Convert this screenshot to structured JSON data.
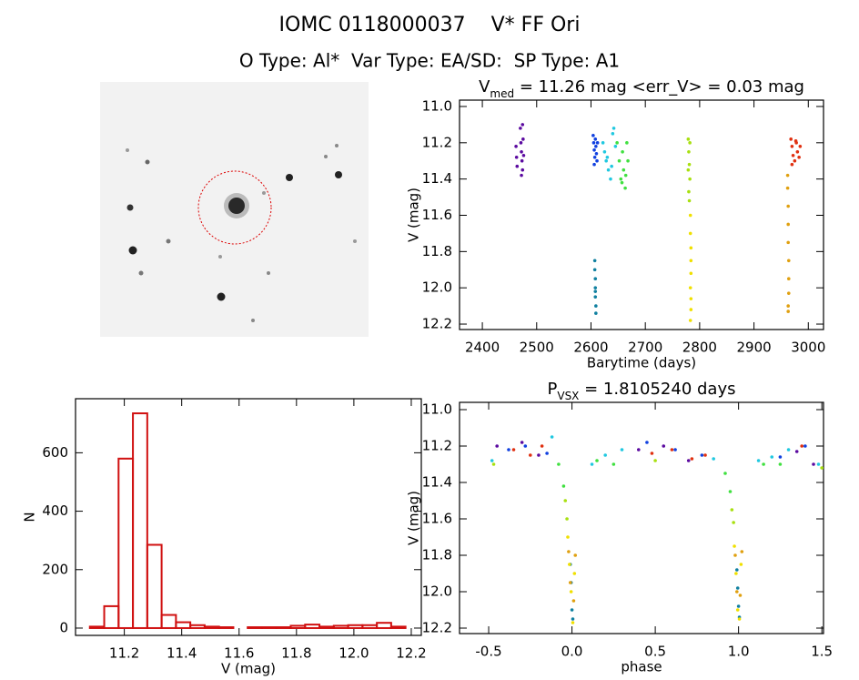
{
  "header": {
    "title": "IOMC 0118000037    V* FF Ori",
    "subtitle": "O Type: Al*  Var Type: EA/SD:  SP Type: A1"
  },
  "chart_data": [
    {
      "type": "scatter",
      "title": [
        "V",
        "med",
        " = 11.26 mag <err_V> = 0.03 mag"
      ],
      "title_subscript": 1,
      "xlabel": "Barytime (days)",
      "ylabel": "V (mag)",
      "xlim": [
        2358,
        3028
      ],
      "xticks": [
        2400,
        2500,
        2600,
        2700,
        2800,
        2900,
        3000
      ],
      "ylim": [
        10.965,
        12.23
      ],
      "y_inverted": true,
      "yticks": [
        {
          "value": 11,
          "label": "11.0"
        },
        11.2,
        11.4,
        11.6,
        11.8,
        {
          "value": 12,
          "label": "12.0"
        },
        12.2
      ],
      "series": [
        {
          "color": "#5b0aa0",
          "x": [
            2462,
            2463,
            2464,
            2470,
            2471,
            2472,
            2473,
            2474,
            2475,
            2476,
            2472,
            2474
          ],
          "values": [
            11.22,
            11.28,
            11.33,
            11.12,
            11.2,
            11.25,
            11.3,
            11.35,
            11.18,
            11.27,
            11.38,
            11.1
          ]
        },
        {
          "color": "#1040e0",
          "x": [
            2604,
            2605,
            2606,
            2607,
            2608,
            2609,
            2610,
            2611,
            2612,
            2606
          ],
          "values": [
            11.16,
            11.2,
            11.24,
            11.28,
            11.18,
            11.22,
            11.26,
            11.3,
            11.2,
            11.32
          ]
        },
        {
          "color": "#1080a0",
          "x": [
            2607,
            2607,
            2608,
            2608,
            2608,
            2609,
            2609,
            2608
          ],
          "values": [
            11.85,
            11.9,
            11.95,
            12.0,
            12.05,
            12.1,
            12.14,
            12.02
          ]
        },
        {
          "color": "#20c8e0",
          "x": [
            2622,
            2625,
            2628,
            2632,
            2636,
            2640,
            2642,
            2645,
            2630,
            2638
          ],
          "values": [
            11.2,
            11.25,
            11.3,
            11.35,
            11.4,
            11.15,
            11.12,
            11.22,
            11.28,
            11.33
          ]
        },
        {
          "color": "#40e040",
          "x": [
            2648,
            2652,
            2655,
            2658,
            2660,
            2663,
            2666,
            2668,
            2657,
            2664
          ],
          "values": [
            11.2,
            11.3,
            11.4,
            11.25,
            11.35,
            11.45,
            11.2,
            11.3,
            11.42,
            11.38
          ]
        },
        {
          "color": "#a8e010",
          "x": [
            2779,
            2780,
            2781,
            2782,
            2780,
            2781,
            2779,
            2782
          ],
          "values": [
            11.18,
            11.25,
            11.32,
            11.4,
            11.47,
            11.52,
            11.35,
            11.2
          ]
        },
        {
          "color": "#f0e000",
          "x": [
            2783,
            2783,
            2784,
            2784,
            2784,
            2783,
            2784,
            2784,
            2783
          ],
          "values": [
            11.6,
            11.7,
            11.78,
            11.85,
            11.92,
            12.0,
            12.06,
            12.12,
            12.18
          ]
        },
        {
          "color": "#e0a010",
          "x": [
            2962,
            2962,
            2963,
            2963,
            2963,
            2964,
            2964,
            2964,
            2963,
            2963
          ],
          "values": [
            11.38,
            11.45,
            11.55,
            11.65,
            11.75,
            11.85,
            11.95,
            12.03,
            12.1,
            12.13
          ]
        },
        {
          "color": "#e03010",
          "x": [
            2968,
            2970,
            2972,
            2975,
            2978,
            2980,
            2983,
            2985,
            2970,
            2977
          ],
          "values": [
            11.18,
            11.22,
            11.27,
            11.3,
            11.2,
            11.25,
            11.28,
            11.22,
            11.32,
            11.19
          ]
        }
      ]
    },
    {
      "type": "histogram",
      "xlabel": "V (mag)",
      "ylabel": "N",
      "color": "#d01010",
      "xlim": [
        11.03,
        12.235
      ],
      "xticks": [
        11.2,
        11.4,
        11.6,
        11.8,
        {
          "value": 12,
          "label": "12.0"
        },
        12.2
      ],
      "ylim": [
        -25,
        785
      ],
      "yticks": [
        0,
        200,
        400,
        600
      ],
      "bins": [
        11.08,
        11.13,
        11.18,
        11.23,
        11.28,
        11.33,
        11.38,
        11.43,
        11.48,
        11.53,
        11.58,
        11.63,
        11.68,
        11.73,
        11.78,
        11.83,
        11.88,
        11.93,
        11.98,
        12.03,
        12.08,
        12.13,
        12.18
      ],
      "values": [
        5,
        75,
        580,
        735,
        285,
        45,
        20,
        10,
        5,
        3,
        0,
        3,
        3,
        3,
        8,
        12,
        5,
        8,
        10,
        10,
        18,
        5
      ]
    },
    {
      "type": "scatter",
      "title": [
        "P",
        "VSX",
        " = 1.8105240 days"
      ],
      "title_subscript": 1,
      "xlabel": "phase",
      "ylabel": "V (mag)",
      "xlim": [
        -0.675,
        1.51
      ],
      "xticks": [
        -0.5,
        {
          "value": 0,
          "label": "0.0"
        },
        0.5,
        {
          "value": 1,
          "label": "1.0"
        },
        1.5
      ],
      "ylim": [
        10.96,
        12.23
      ],
      "y_inverted": true,
      "yticks": [
        {
          "value": 11,
          "label": "11.0"
        },
        11.2,
        11.4,
        11.6,
        11.8,
        {
          "value": 12,
          "label": "12.0"
        },
        12.2
      ],
      "series": [
        {
          "color": "#5b0aa0",
          "x": [
            -0.45,
            -0.3,
            -0.2,
            0.4,
            0.55,
            0.7,
            1.35,
            1.45
          ],
          "values": [
            11.2,
            11.18,
            11.25,
            11.22,
            11.2,
            11.28,
            11.23,
            11.3
          ]
        },
        {
          "color": "#1040e0",
          "x": [
            -0.38,
            -0.28,
            -0.15,
            0.45,
            0.62,
            0.78,
            1.25,
            1.4
          ],
          "values": [
            11.22,
            11.2,
            11.24,
            11.18,
            11.22,
            11.25,
            11.26,
            11.2
          ]
        },
        {
          "color": "#1080a0",
          "x": [
            -0.01,
            -0.005,
            0.0,
            0.005,
            0.99,
            0.995,
            1.0,
            1.005
          ],
          "values": [
            11.85,
            11.95,
            12.1,
            12.15,
            11.88,
            11.98,
            12.08,
            12.14
          ]
        },
        {
          "color": "#20c8e0",
          "x": [
            -0.48,
            -0.12,
            0.12,
            0.2,
            0.3,
            0.85,
            1.12,
            1.2,
            1.3,
            1.48
          ],
          "values": [
            11.28,
            11.15,
            11.3,
            11.25,
            11.22,
            11.27,
            11.28,
            11.26,
            11.22,
            11.3
          ]
        },
        {
          "color": "#40e040",
          "x": [
            -0.08,
            -0.05,
            0.15,
            0.25,
            0.92,
            0.95,
            1.15,
            1.25
          ],
          "values": [
            11.3,
            11.42,
            11.28,
            11.3,
            11.35,
            11.45,
            11.3,
            11.3
          ]
        },
        {
          "color": "#a8e010",
          "x": [
            -0.04,
            -0.03,
            0.96,
            0.97,
            -0.47,
            0.5,
            1.5
          ],
          "values": [
            11.5,
            11.6,
            11.55,
            11.62,
            11.3,
            11.28,
            11.32
          ]
        },
        {
          "color": "#f0e000",
          "x": [
            -0.025,
            -0.015,
            -0.005,
            0.005,
            0.015,
            0.975,
            0.985,
            0.995,
            1.005,
            1.015
          ],
          "values": [
            11.7,
            11.85,
            12.0,
            12.17,
            11.9,
            11.75,
            11.9,
            12.1,
            12.15,
            11.85
          ]
        },
        {
          "color": "#e0a010",
          "x": [
            -0.02,
            -0.01,
            0.01,
            0.02,
            0.98,
            0.99,
            1.01,
            1.02
          ],
          "values": [
            11.78,
            11.95,
            12.05,
            11.8,
            11.8,
            12.0,
            12.02,
            11.78
          ]
        },
        {
          "color": "#e03010",
          "x": [
            -0.35,
            -0.25,
            -0.18,
            0.48,
            0.6,
            0.72,
            0.8,
            1.38
          ],
          "values": [
            11.22,
            11.25,
            11.2,
            11.24,
            11.22,
            11.27,
            11.25,
            11.2
          ]
        }
      ]
    }
  ]
}
